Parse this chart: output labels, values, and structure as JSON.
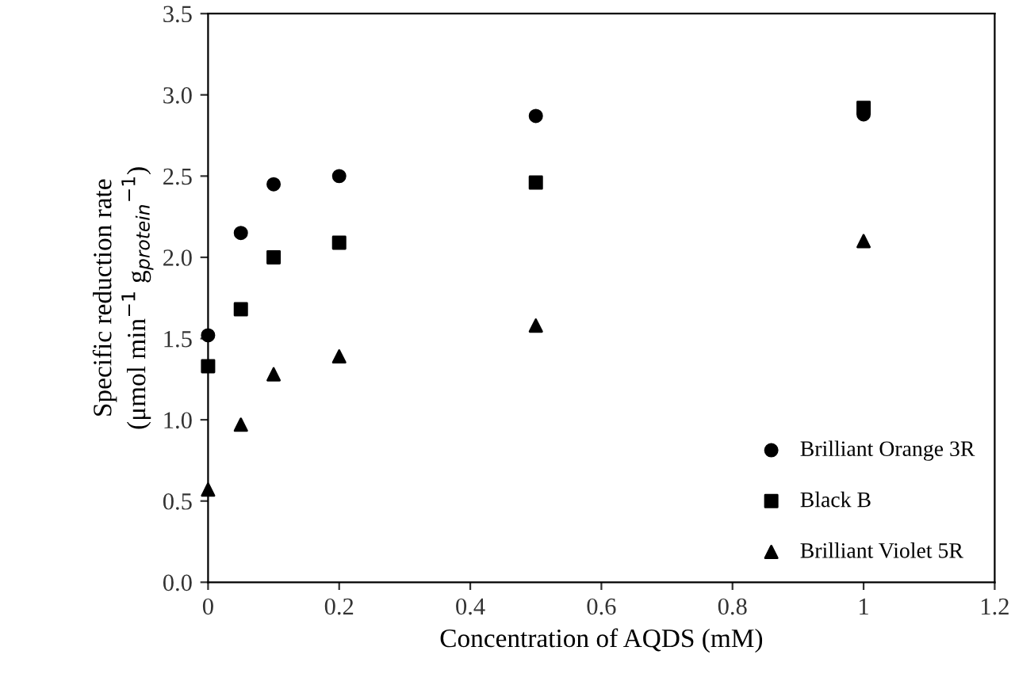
{
  "chart_data": {
    "type": "scatter",
    "xlabel": "Concentration of AQDS (mM)",
    "ylabel": "Specific reduction rate\n(μmol min$^{−1}$ g$_{protein}$$^{−1}$)",
    "x": [
      0,
      0.05,
      0.1,
      0.2,
      0.5,
      1
    ],
    "series": [
      {
        "name": "Brilliant Orange 3R",
        "color": "#000000",
        "marker": "circle",
        "values": [
          1.52,
          2.15,
          2.45,
          2.5,
          2.87,
          2.88
        ]
      },
      {
        "name": "Black B",
        "color": "#000000",
        "marker": "square",
        "values": [
          1.33,
          1.68,
          2.0,
          2.09,
          2.46,
          2.92
        ]
      },
      {
        "name": "Brilliant Violet 5R",
        "color": "#000000",
        "marker": "triangle",
        "values": [
          0.57,
          0.97,
          1.28,
          1.39,
          1.58,
          2.1
        ]
      }
    ],
    "xlim": [
      0,
      1.2
    ],
    "ylim": [
      0,
      3.5
    ],
    "xticks": [
      0,
      0.2,
      0.4,
      0.6,
      0.8,
      1,
      1.2
    ],
    "yticks": [
      {
        "value": 0,
        "label": "0.0"
      },
      {
        "value": 0.5,
        "label": "0.5"
      },
      {
        "value": 1,
        "label": "1.0"
      },
      {
        "value": 1.5,
        "label": "1.5"
      },
      {
        "value": 2,
        "label": "2.0"
      },
      {
        "value": 2.5,
        "label": "2.5"
      },
      {
        "value": 3,
        "label": "3.0"
      },
      {
        "value": 3.5,
        "label": "3.5"
      }
    ],
    "grid": false,
    "legend": "bottom right"
  }
}
